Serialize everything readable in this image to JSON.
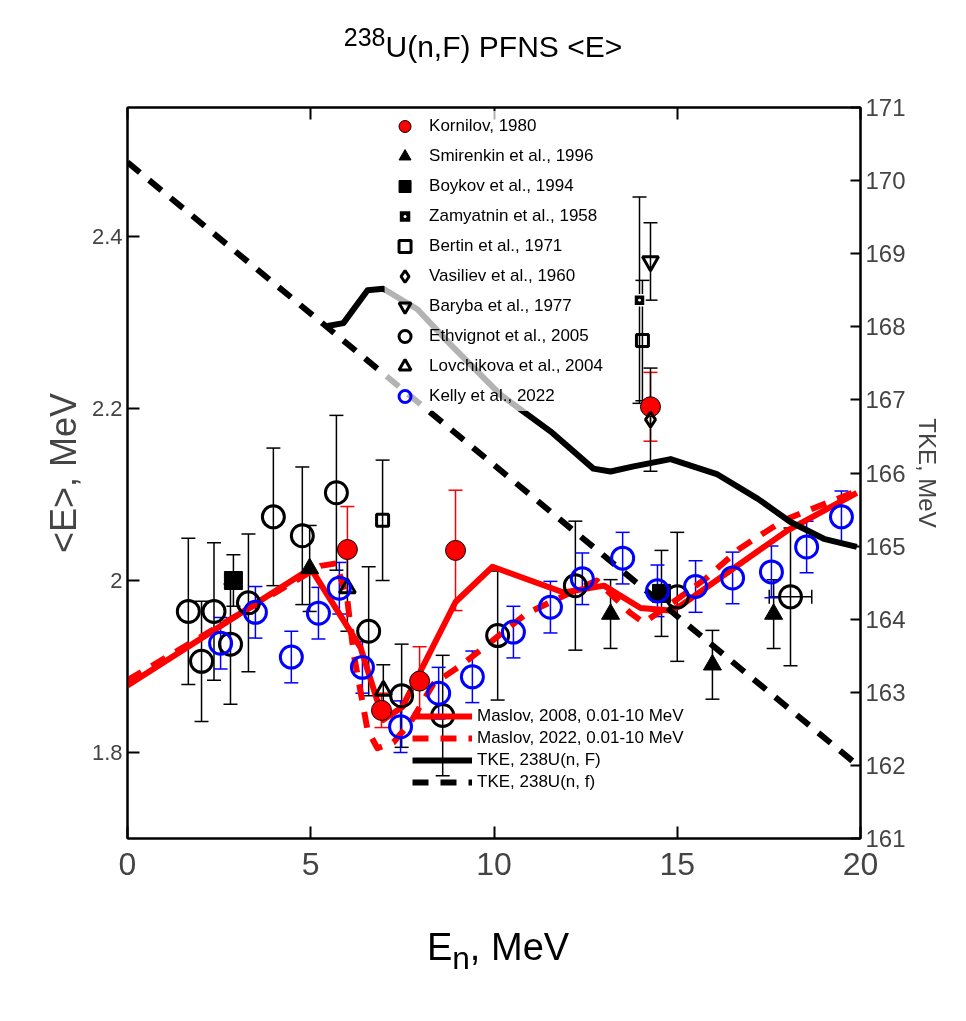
{
  "chart_data": {
    "type": "scatter",
    "title": "$^{238}$U(n,F) PFNS <E>",
    "xlabel": "E$_{n}$, MeV",
    "ylabel": "<E>, MeV",
    "y2label": "TKE, MeV",
    "xlim": [
      0,
      20
    ],
    "xticks": [
      0,
      5,
      10,
      15,
      20
    ],
    "ylim": [
      1.7,
      2.55
    ],
    "yticks": [
      1.8,
      2.0,
      2.2,
      2.4
    ],
    "y2lim": [
      161,
      171
    ],
    "y2ticks": [
      161,
      162,
      163,
      164,
      165,
      166,
      167,
      168,
      169,
      170,
      171
    ],
    "grid": false,
    "legend": "top",
    "series": [
      {
        "name": "Maslov, 2008, 0.01-10 MeV",
        "type": "line",
        "line_style": "solid",
        "color": "#ff0000",
        "x": [
          0,
          5.0,
          6.36,
          6.98,
          7.5,
          8.95,
          9.96,
          11.9,
          13.0,
          14.0,
          14.8,
          15.1,
          18.0,
          19.9
        ],
        "values": [
          1.878,
          2.014,
          1.922,
          1.838,
          1.853,
          1.975,
          2.016,
          1.986,
          1.994,
          1.968,
          1.965,
          1.971,
          2.058,
          2.102
        ]
      },
      {
        "name": "Maslov, 2022, 0.01-10 MeV",
        "type": "line",
        "line_style": "dashed",
        "color": "#ff0000",
        "x": [
          0,
          5.27,
          5.7,
          6.0,
          6.17,
          6.55,
          6.82,
          7.26,
          7.72,
          8.35,
          9.09,
          9.9,
          10.9,
          12.2,
          12.8,
          13.7,
          14.08,
          14.7,
          15.8,
          16.7,
          17.9,
          19.9
        ],
        "values": [
          1.884,
          2.017,
          2.02,
          1.977,
          1.915,
          1.826,
          1.805,
          1.812,
          1.835,
          1.88,
          1.901,
          1.928,
          1.962,
          1.988,
          2.0,
          1.963,
          1.951,
          1.969,
          2.003,
          2.037,
          2.07,
          2.104
        ]
      },
      {
        "name": "TKE, 238U(n, F)",
        "type": "line",
        "axis": "y2",
        "line_style": "solid",
        "color": "#000000",
        "x": [
          5.46,
          5.89,
          6.55,
          6.98,
          7.91,
          8.81,
          10.18,
          11.54,
          12.71,
          13.18,
          13.81,
          14.82,
          16.1,
          17.19,
          18.09,
          19.0,
          19.9
        ],
        "values": [
          168.01,
          168.05,
          168.5,
          168.52,
          168.24,
          167.76,
          167.07,
          166.57,
          166.06,
          166.02,
          166.09,
          166.19,
          165.98,
          165.65,
          165.33,
          165.1,
          164.99
        ]
      },
      {
        "name": "TKE, 238U(n, f)",
        "type": "line",
        "axis": "y2",
        "line_style": "dashed",
        "color": "#000000",
        "x": [
          0,
          20
        ],
        "values": [
          170.25,
          161.97
        ]
      },
      {
        "name": "Kornilov, 1980",
        "marker": "circle",
        "color": "#ff0000",
        "x": [
          6.0,
          6.93,
          7.97,
          8.95,
          14.27
        ],
        "values": [
          2.036,
          1.849,
          1.883,
          2.035,
          2.202
        ],
        "errors": [
          0.05,
          0.02,
          0.04,
          0.07,
          0.04
        ]
      },
      {
        "name": "Smirenkin et al., 1996",
        "marker": "triangle",
        "color": "#000000",
        "x": [
          4.97,
          13.18,
          15.96,
          17.63
        ],
        "values": [
          2.014,
          1.961,
          1.902,
          1.961
        ],
        "errors": [
          0.05,
          0.04,
          0.04,
          0.04
        ]
      },
      {
        "name": "Boykov et al., 1994",
        "marker": "square",
        "color": "#000000",
        "x": [
          2.89,
          14.57
        ],
        "values": [
          2.0,
          1.985
        ],
        "errors": [
          0.03,
          0.05
        ]
      },
      {
        "name": "Zamyatnin et al., 1958",
        "marker": "square_dot",
        "color": "#000000",
        "x": [
          13.97
        ],
        "values": [
          2.326
        ],
        "errors": [
          0.12
        ]
      },
      {
        "name": "Bertin et al., 1971",
        "marker": "square_open",
        "color": "#000000",
        "x": [
          6.96,
          14.05
        ],
        "values": [
          2.07,
          2.279
        ],
        "errors": [
          0.07,
          0.07
        ]
      },
      {
        "name": "Vasiliev et al., 1960",
        "marker": "diamond_open",
        "color": "#000000",
        "x": [
          14.27
        ],
        "values": [
          2.187
        ],
        "errors": [
          0.06
        ]
      },
      {
        "name": "Baryba et al., 1977",
        "color": "#000000",
        "x": [
          14.27
        ],
        "values": [
          2.371
        ],
        "errors": [
          0.045
        ]
      },
      {
        "name": "Ethvignot et al., 2005",
        "marker": "circle_open",
        "color": "#000000",
        "x": [
          1.66,
          2.02,
          2.36,
          2.81,
          3.3,
          3.98,
          4.77,
          5.7,
          6.58,
          7.48,
          8.6,
          10.1,
          12.22,
          15.0,
          18.09
        ],
        "values": [
          1.964,
          1.906,
          1.964,
          1.926,
          1.974,
          2.074,
          2.052,
          2.102,
          1.941,
          1.866,
          1.843,
          1.936,
          1.994,
          1.981,
          1.981
        ],
        "errors": [
          0.085,
          0.07,
          0.08,
          0.07,
          0.08,
          0.08,
          0.08,
          0.09,
          0.075,
          0.06,
          0.07,
          0.075,
          0.075,
          0.075,
          0.08
        ],
        "xerrors": [
          null,
          null,
          null,
          null,
          null,
          null,
          null,
          null,
          null,
          null,
          null,
          null,
          null,
          null,
          0.58
        ]
      },
      {
        "name": "Lovchikova et al., 2004",
        "marker": "triangle_open",
        "color": "#000000",
        "x": [
          6.0,
          6.98
        ],
        "values": [
          1.991,
          1.872
        ],
        "errors": [
          0.05,
          0.03
        ]
      },
      {
        "name": "Kelly et al., 2022",
        "marker": "circle_open",
        "color": "#0000ff",
        "x": [
          2.54,
          3.49,
          4.47,
          5.21,
          5.78,
          6.41,
          7.45,
          8.49,
          9.41,
          10.53,
          11.54,
          12.41,
          13.51,
          14.46,
          15.5,
          16.51,
          17.57,
          18.53,
          19.48
        ],
        "values": [
          1.927,
          1.963,
          1.911,
          1.962,
          1.991,
          1.899,
          1.83,
          1.869,
          1.888,
          1.94,
          1.969,
          2.002,
          2.026,
          1.988,
          1.993,
          2.003,
          2.01,
          2.039,
          2.074
        ],
        "errors": [
          0.03,
          0.03,
          0.03,
          0.03,
          0.03,
          0.03,
          0.03,
          0.03,
          0.03,
          0.03,
          0.03,
          0.03,
          0.03,
          0.03,
          0.03,
          0.03,
          0.03,
          0.03,
          0.03
        ]
      }
    ]
  }
}
